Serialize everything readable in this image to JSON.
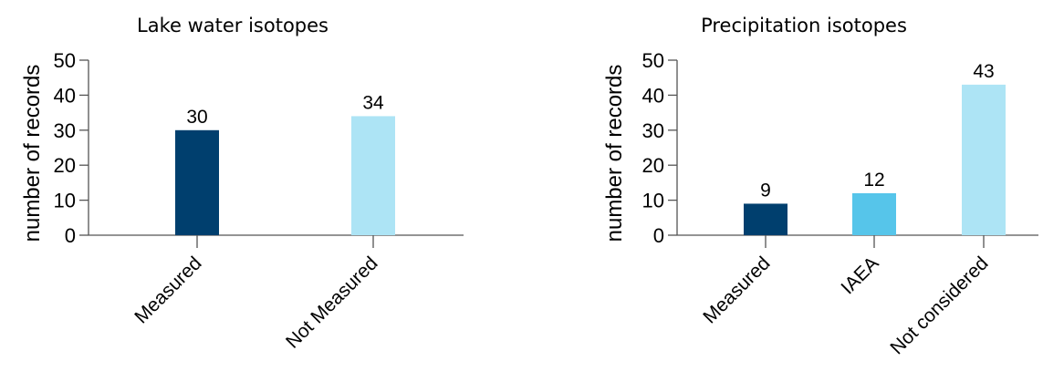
{
  "chart_data": [
    {
      "type": "bar",
      "title": "Lake water isotopes",
      "ylabel": "number of records",
      "xlabel": "",
      "ylim": [
        0,
        50
      ],
      "yticks": [
        0,
        10,
        20,
        30,
        40,
        50
      ],
      "categories": [
        "Measured",
        "Not Measured"
      ],
      "values": [
        30,
        34
      ],
      "colors": [
        "#003f6e",
        "#ade4f5"
      ],
      "grid": false,
      "legend": "none"
    },
    {
      "type": "bar",
      "title": "Precipitation isotopes",
      "ylabel": "number of records",
      "xlabel": "",
      "ylim": [
        0,
        50
      ],
      "yticks": [
        0,
        10,
        20,
        30,
        40,
        50
      ],
      "categories": [
        "Measured",
        "IAEA",
        "Not considered"
      ],
      "values": [
        9,
        12,
        43
      ],
      "colors": [
        "#003f6e",
        "#56c5ea",
        "#ade4f5"
      ],
      "grid": false,
      "legend": "none"
    }
  ]
}
